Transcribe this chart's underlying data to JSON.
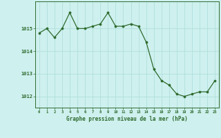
{
  "x": [
    0,
    1,
    2,
    3,
    4,
    5,
    6,
    7,
    8,
    9,
    10,
    11,
    12,
    13,
    14,
    15,
    16,
    17,
    18,
    19,
    20,
    21,
    22,
    23
  ],
  "y": [
    1014.8,
    1015.0,
    1014.6,
    1015.0,
    1015.7,
    1015.0,
    1015.0,
    1015.1,
    1015.2,
    1015.7,
    1015.1,
    1015.1,
    1015.2,
    1015.1,
    1014.4,
    1013.2,
    1012.7,
    1012.5,
    1012.1,
    1012.0,
    1012.1,
    1012.2,
    1012.2,
    1012.7
  ],
  "line_color": "#2d6a2d",
  "marker_color": "#2d6a2d",
  "bg_color": "#cef0ee",
  "grid_color": "#aaddd8",
  "axis_label_color": "#2d6a2d",
  "tick_color": "#2d6a2d",
  "xlabel": "Graphe pression niveau de la mer (hPa)",
  "ylim": [
    1011.5,
    1016.2
  ],
  "yticks": [
    1012,
    1013,
    1014,
    1015
  ],
  "xticks": [
    0,
    1,
    2,
    3,
    4,
    5,
    6,
    7,
    8,
    9,
    10,
    11,
    12,
    13,
    14,
    15,
    16,
    17,
    18,
    19,
    20,
    21,
    22,
    23
  ],
  "figsize": [
    3.2,
    2.0
  ],
  "dpi": 100
}
